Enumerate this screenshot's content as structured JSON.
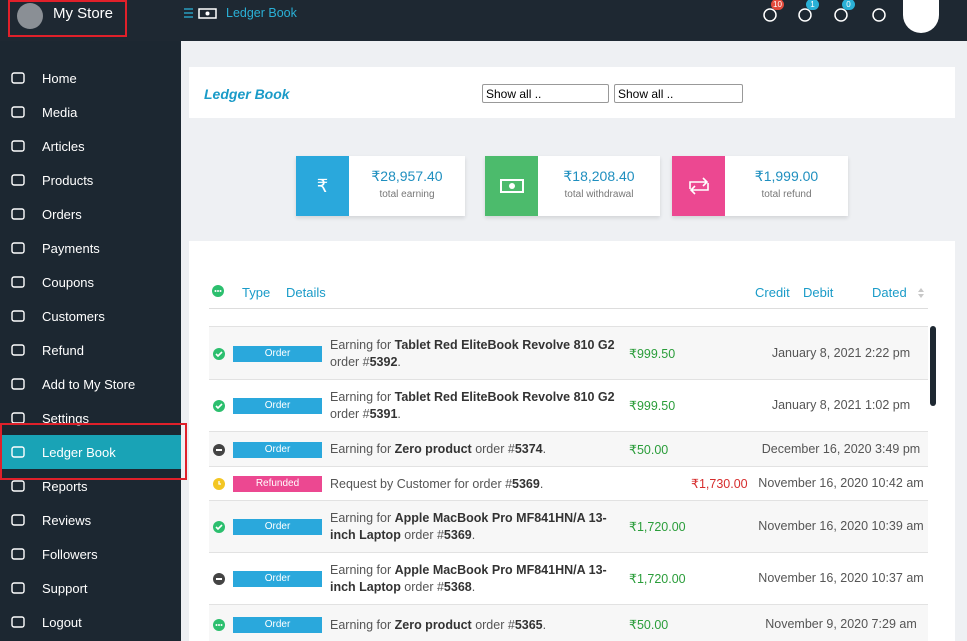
{
  "topbar": {
    "store_name": "My Store",
    "breadcrumb": "Ledger Book",
    "badges": [
      "10",
      "1",
      "0"
    ]
  },
  "sidebar": {
    "items": [
      "Home",
      "Media",
      "Articles",
      "Products",
      "Orders",
      "Payments",
      "Coupons",
      "Customers",
      "Refund",
      "Add to My Store",
      "Settings",
      "Ledger Book",
      "Reports",
      "Reviews",
      "Followers",
      "Support",
      "Logout"
    ]
  },
  "header": {
    "title": "Ledger Book",
    "filters": [
      "Show all ..",
      "Show all .."
    ]
  },
  "stats": [
    {
      "icon": "₹",
      "value": "₹28,957.40",
      "label": "total earning"
    },
    {
      "value": "₹18,208.40",
      "label": "total withdrawal"
    },
    {
      "value": "₹1,999.00",
      "label": "total refund"
    }
  ],
  "table": {
    "columns": [
      "Type",
      "Details",
      "Credit",
      "Debit",
      "Dated"
    ],
    "rows": [
      {
        "type": "Order",
        "details": [
          "Earning for ",
          "Tablet Red EliteBook Revolve 810 G2",
          " order #",
          "5392",
          "."
        ],
        "credit": "₹999.50",
        "dated": "January 8, 2021 2:22 pm"
      },
      {
        "type": "Order",
        "details": [
          "Earning for ",
          "Tablet Red EliteBook Revolve 810 G2",
          " order #",
          "5391",
          "."
        ],
        "credit": "₹999.50",
        "dated": "January 8, 2021 1:02 pm"
      },
      {
        "type": "Order",
        "details": [
          "Earning for ",
          "Zero product",
          " order #",
          "5374",
          "."
        ],
        "credit": "₹50.00",
        "dated": "December 16, 2020 3:49 pm"
      },
      {
        "type": "Refunded",
        "details": [
          "Request by Customer for order #",
          "5369",
          "."
        ],
        "debit": "₹1,730.00",
        "dated": "November 16, 2020 10:42 am"
      },
      {
        "type": "Order",
        "details": [
          "Earning for ",
          "Apple MacBook Pro MF841HN/A 13-inch Laptop",
          " order #",
          "5369",
          "."
        ],
        "credit": "₹1,720.00",
        "dated": "November 16, 2020 10:39 am"
      },
      {
        "type": "Order",
        "details": [
          "Earning for ",
          "Apple MacBook Pro MF841HN/A 13-inch Laptop",
          " order #",
          "5368",
          "."
        ],
        "credit": "₹1,720.00",
        "dated": "November 16, 2020 10:37 am"
      },
      {
        "type": "Order",
        "details": [
          "Earning for ",
          "Zero product",
          " order #",
          "5365",
          "."
        ],
        "credit": "₹50.00",
        "dated": "November 9, 2020 7:29 am"
      }
    ]
  }
}
